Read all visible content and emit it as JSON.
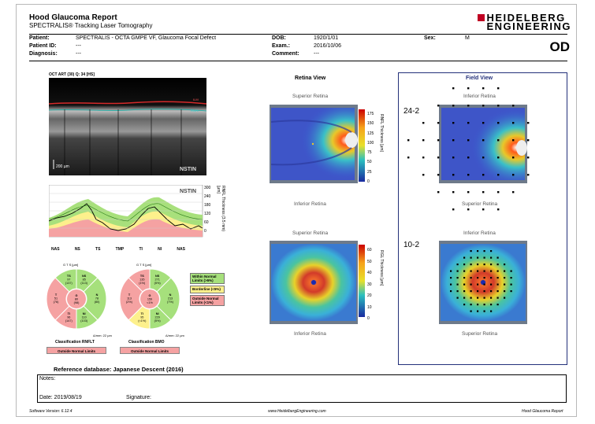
{
  "header": {
    "title": "Hood Glaucoma Report",
    "subtitle": "SPECTRALIS® Tracking Laser Tomography",
    "logo_line1": "HEIDELBERG",
    "logo_line2": "ENGINEERING",
    "eye": "OD"
  },
  "patient": {
    "patient_label": "Patient:",
    "patient_value": "SPECTRALIS - OCTA GMPE VF, Glaucoma Focal Defect",
    "id_label": "Patient ID:",
    "id_value": "---",
    "diagnosis_label": "Diagnosis:",
    "diagnosis_value": "---",
    "dob_label": "DOB:",
    "dob_value": "1920/1/01",
    "exam_label": "Exam.:",
    "exam_value": "2016/10/06",
    "comment_label": "Comment:",
    "comment_value": "---",
    "sex_label": "Sex:",
    "sex_value": "M"
  },
  "oct": {
    "header": "OCT ART (30) Q: 34 [HS]",
    "scale_label": "200 µm",
    "corner_label": "NSTIN",
    "ilm_label": "ILM",
    "rnfl_label": "RNFL"
  },
  "rnfl_plot": {
    "corner_label": "NSTIN",
    "axis_title": "RNFL Thickness (3.5 mm) [µm]",
    "y_ticks": [
      "300",
      "240",
      "180",
      "120",
      "60",
      "0"
    ],
    "x_labels": [
      "NAS",
      "NS",
      "TS",
      "TMP",
      "TI",
      "NI",
      "NAS"
    ]
  },
  "circles": {
    "left": {
      "header": "G   T   S   [µm]",
      "classification": "Classification RNFLT",
      "result": "Outside Normal Limits",
      "center": {
        "name": "G",
        "value": "80",
        "ref": "(98)"
      },
      "sectors": [
        {
          "name": "TS",
          "value": "97",
          "ref": "(137)"
        },
        {
          "name": "NS",
          "value": "85",
          "ref": "(113)"
        },
        {
          "name": "N",
          "value": "78",
          "ref": "(80)"
        },
        {
          "name": "NI",
          "value": "110",
          "ref": "(103)"
        },
        {
          "name": "TI",
          "value": "96",
          "ref": "(147)"
        },
        {
          "name": "T",
          "value": "51",
          "ref": "(76)"
        }
      ],
      "extra_label": "Δ/mm: 22 µm"
    },
    "right": {
      "header": "G   T   S   [µm]",
      "classification": "Classification BMO",
      "result": "Outside Normal Limits",
      "center": {
        "name": "G",
        "value": "159",
        "ref": "<1%"
      },
      "sectors": [
        {
          "name": "TS",
          "value": "135",
          "ref": "(1%)"
        },
        {
          "name": "NS",
          "value": "271",
          "ref": "(5%)"
        },
        {
          "name": "N",
          "value": "213",
          "ref": "(7%)"
        },
        {
          "name": "NI",
          "value": "229",
          "ref": "(5%)"
        },
        {
          "name": "TI",
          "value": "95",
          "ref": "(<1%)"
        },
        {
          "name": "T",
          "value": "113",
          "ref": "(2%)"
        }
      ],
      "extra_label": "Δ/mm: 22 µm"
    },
    "legend": {
      "within": "Within Normal Limits (>5%)",
      "borderline": "Borderline (<5%)",
      "outside": "Outside Normal Limits (<1%)"
    }
  },
  "retina_view": {
    "title": "Retina View",
    "top_label": "Superior Retina",
    "bottom_label": "Inferior Retina",
    "cb1_ticks": [
      "175",
      "150",
      "125",
      "100",
      "75",
      "50",
      "25",
      "0"
    ],
    "cb1_title": "RNFL Thickness [µm]",
    "lower_top_label": "Superior Retina",
    "lower_bottom_label": "Inferior Retina",
    "cb2_ticks": [
      "60",
      "50",
      "40",
      "30",
      "20",
      "10",
      "0"
    ],
    "cb2_title": "RGL Thickness [µm]"
  },
  "field_view": {
    "title": "Field View",
    "upper_top_label": "Inferior Retina",
    "upper_bottom_label": "Superior Retina",
    "upper_grid": "24-2",
    "lower_top_label": "Inferior Retina",
    "lower_bottom_label": "Superior Retina",
    "lower_grid": "10-2"
  },
  "reference_db": "Reference database: Japanese Descent (2016)",
  "notes": {
    "label": "Notes:",
    "date_label": "Date: 2019/08/19",
    "signature_label": "Signature:"
  },
  "footer": {
    "version": "Software Version: 6.12.4",
    "url": "www.HeidelbergEngineering.com",
    "report": "Hood Glaucoma Report"
  },
  "colors": {
    "logo_red": "#c00022",
    "within_normal": "#a6e07c",
    "borderline": "#fdf08c",
    "outside_normal": "#f5a2a2",
    "frame_blue": "#23307a"
  }
}
